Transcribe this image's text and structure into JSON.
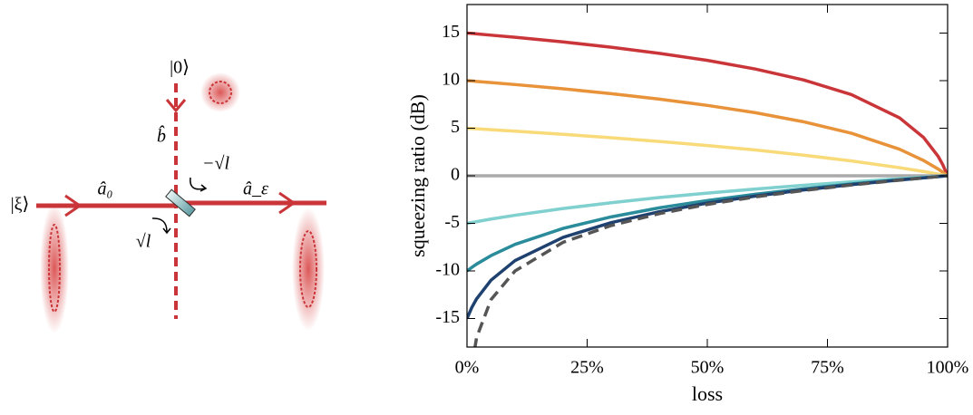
{
  "diagram": {
    "labels": {
      "vacuum": "|0⟩",
      "b": "b̂",
      "input": "|ξ⟩",
      "a0": "â₀",
      "aeps": "â_ε",
      "minus_sqrt_l": "−√l",
      "sqrt_l": "√l"
    }
  },
  "chart_data": {
    "type": "line",
    "x_label": "loss",
    "y_label": "squeezing ratio (dB)",
    "x": [
      0,
      0.01,
      0.02,
      0.05,
      0.1,
      0.2,
      0.3,
      0.4,
      0.5,
      0.6,
      0.7,
      0.8,
      0.9,
      0.95,
      0.98,
      0.99,
      1
    ],
    "xlim": [
      0,
      1
    ],
    "xticks": [
      {
        "value": 0,
        "label": "0%"
      },
      {
        "value": 0.25,
        "label": "25%"
      },
      {
        "value": 0.5,
        "label": "50%"
      },
      {
        "value": 0.75,
        "label": "75%"
      },
      {
        "value": 1,
        "label": "100%"
      }
    ],
    "ylim": [
      -18,
      18
    ],
    "yticks": [
      -15,
      -10,
      -5,
      0,
      5,
      10,
      15
    ],
    "series": [
      {
        "color": "#c93538",
        "values": [
          15,
          14.96,
          14.92,
          14.78,
          14.56,
          14.07,
          13.51,
          12.87,
          12.13,
          11.22,
          10.08,
          8.53,
          6.09,
          4.03,
          2.07,
          1.16,
          0
        ]
      },
      {
        "color": "#e8923a",
        "values": [
          10,
          9.96,
          9.92,
          9.8,
          9.59,
          9.14,
          8.63,
          8.06,
          7.4,
          6.63,
          5.68,
          4.47,
          2.79,
          1.61,
          0.72,
          0.37,
          0
        ]
      },
      {
        "color": "#f8da78",
        "values": [
          5,
          4.97,
          4.94,
          4.85,
          4.69,
          4.36,
          4,
          3.61,
          3.18,
          2.71,
          2.17,
          1.56,
          0.85,
          0.45,
          0.18,
          0.09,
          0
        ]
      },
      {
        "color": "#aaaaaa",
        "values": [
          0,
          0,
          0,
          0,
          0,
          0,
          0,
          0,
          0,
          0,
          0,
          0,
          0,
          0,
          0,
          0,
          0
        ]
      },
      {
        "color": "#7fd0cf",
        "values": [
          -5,
          -4.91,
          -4.82,
          -4.55,
          -4.15,
          -3.44,
          -2.83,
          -2.29,
          -1.82,
          -1.39,
          -1,
          -0.64,
          -0.31,
          -0.15,
          -0.06,
          -0.03,
          0
        ]
      },
      {
        "color": "#2a8b9b",
        "values": [
          -10,
          -9.63,
          -9.28,
          -8.39,
          -7.21,
          -5.53,
          -4.32,
          -3.37,
          -2.6,
          -1.94,
          -1.37,
          -0.86,
          -0.41,
          -0.2,
          -0.08,
          -0.04,
          0
        ]
      },
      {
        "color": "#1f416f",
        "values": [
          -15,
          -13.84,
          -12.93,
          -10.97,
          -8.91,
          -6.47,
          -4.92,
          -3.78,
          -2.87,
          -2.13,
          -1.49,
          -0.93,
          -0.44,
          -0.22,
          -0.08,
          -0.04,
          0
        ]
      },
      {
        "color": "#555555",
        "dash": true,
        "values": [
          null,
          -20,
          -16.99,
          -13.01,
          -10,
          -6.99,
          -5.23,
          -3.98,
          -3.01,
          -2.22,
          -1.55,
          -0.97,
          -0.46,
          -0.22,
          -0.09,
          -0.04,
          0
        ]
      }
    ]
  }
}
